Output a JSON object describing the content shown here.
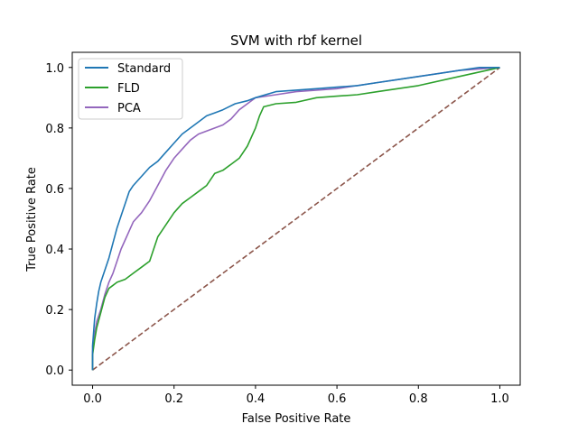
{
  "chart_data": {
    "type": "line",
    "title": "SVM with rbf kernel",
    "xlabel": "False Positive Rate",
    "ylabel": "True Positive Rate",
    "xlim": [
      -0.05,
      1.05
    ],
    "ylim": [
      -0.05,
      1.05
    ],
    "xticks": [
      0.0,
      0.2,
      0.4,
      0.6,
      0.8,
      1.0
    ],
    "yticks": [
      0.0,
      0.2,
      0.4,
      0.6,
      0.8,
      1.0
    ],
    "xtick_labels": [
      "0.0",
      "0.2",
      "0.4",
      "0.6",
      "0.8",
      "1.0"
    ],
    "ytick_labels": [
      "0.0",
      "0.2",
      "0.4",
      "0.6",
      "0.8",
      "1.0"
    ],
    "grid": false,
    "legend": "top-left",
    "series": [
      {
        "name": "Standard",
        "color": "#1f77b4",
        "x": [
          0.0,
          0.0,
          0.005,
          0.01,
          0.015,
          0.02,
          0.03,
          0.04,
          0.05,
          0.06,
          0.07,
          0.08,
          0.09,
          0.1,
          0.12,
          0.14,
          0.16,
          0.18,
          0.2,
          0.22,
          0.25,
          0.28,
          0.3,
          0.32,
          0.35,
          0.38,
          0.4,
          0.45,
          0.5,
          0.55,
          0.6,
          0.65,
          0.7,
          0.75,
          0.8,
          0.85,
          0.9,
          0.95,
          1.0
        ],
        "y": [
          0.0,
          0.08,
          0.17,
          0.22,
          0.26,
          0.29,
          0.33,
          0.37,
          0.42,
          0.47,
          0.51,
          0.55,
          0.59,
          0.61,
          0.64,
          0.67,
          0.69,
          0.72,
          0.75,
          0.78,
          0.81,
          0.84,
          0.85,
          0.86,
          0.88,
          0.89,
          0.9,
          0.92,
          0.925,
          0.93,
          0.935,
          0.94,
          0.95,
          0.96,
          0.97,
          0.98,
          0.99,
          1.0,
          1.0
        ]
      },
      {
        "name": "FLD",
        "color": "#2ca02c",
        "x": [
          0.0,
          0.0,
          0.005,
          0.01,
          0.02,
          0.03,
          0.04,
          0.05,
          0.06,
          0.08,
          0.1,
          0.12,
          0.14,
          0.15,
          0.16,
          0.18,
          0.2,
          0.22,
          0.24,
          0.26,
          0.28,
          0.3,
          0.32,
          0.34,
          0.36,
          0.38,
          0.4,
          0.41,
          0.42,
          0.45,
          0.5,
          0.55,
          0.6,
          0.65,
          0.7,
          0.8,
          0.9,
          1.0
        ],
        "y": [
          0.0,
          0.05,
          0.1,
          0.14,
          0.19,
          0.24,
          0.27,
          0.28,
          0.29,
          0.3,
          0.32,
          0.34,
          0.36,
          0.4,
          0.44,
          0.48,
          0.52,
          0.55,
          0.57,
          0.59,
          0.61,
          0.65,
          0.66,
          0.68,
          0.7,
          0.74,
          0.8,
          0.84,
          0.87,
          0.88,
          0.885,
          0.9,
          0.905,
          0.91,
          0.92,
          0.94,
          0.97,
          1.0
        ]
      },
      {
        "name": "PCA",
        "color": "#9467bd",
        "x": [
          0.0,
          0.0,
          0.005,
          0.01,
          0.02,
          0.03,
          0.04,
          0.05,
          0.06,
          0.07,
          0.08,
          0.09,
          0.1,
          0.12,
          0.14,
          0.16,
          0.18,
          0.2,
          0.22,
          0.24,
          0.26,
          0.28,
          0.3,
          0.32,
          0.34,
          0.36,
          0.38,
          0.4,
          0.45,
          0.5,
          0.6,
          0.7,
          0.8,
          0.9,
          1.0
        ],
        "y": [
          0.0,
          0.06,
          0.12,
          0.16,
          0.2,
          0.25,
          0.29,
          0.32,
          0.36,
          0.4,
          0.43,
          0.46,
          0.49,
          0.52,
          0.56,
          0.61,
          0.66,
          0.7,
          0.73,
          0.76,
          0.78,
          0.79,
          0.8,
          0.81,
          0.83,
          0.86,
          0.88,
          0.9,
          0.91,
          0.92,
          0.93,
          0.95,
          0.97,
          0.99,
          1.0
        ]
      },
      {
        "name": "",
        "color": "#8c564b",
        "dashed": true,
        "x": [
          0.0,
          1.0
        ],
        "y": [
          0.0,
          1.0
        ]
      }
    ]
  }
}
